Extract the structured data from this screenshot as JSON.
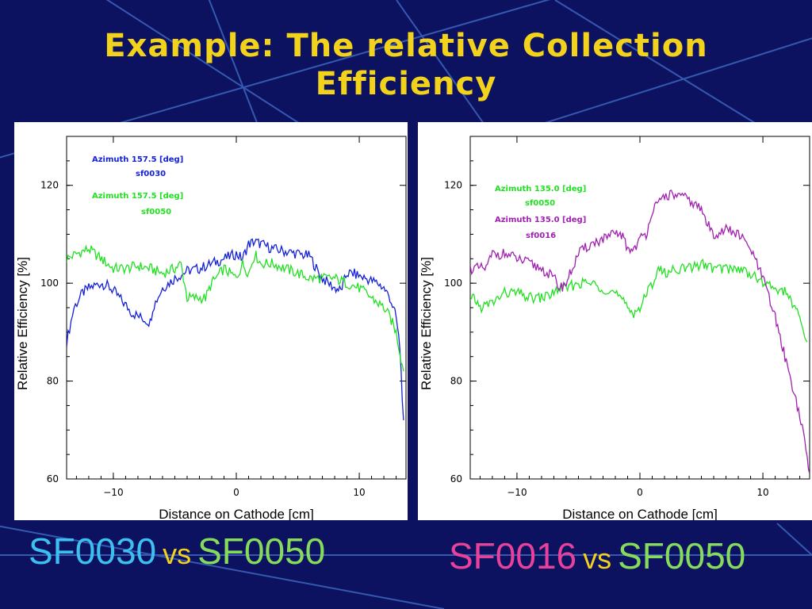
{
  "title": {
    "line1": "Example: The relative Collection",
    "line2": "Efficiency"
  },
  "colors": {
    "background": "#0c1260",
    "title": "#f2d21a",
    "deco": "#3f6bc4",
    "sf0030": "#3cc0f0",
    "sf0050": "#86dc5a",
    "sf0016": "#e8419a",
    "vs": "#f2d21a"
  },
  "captions": {
    "left": {
      "a": "SF0030",
      "vs": "vs",
      "b": "SF0050"
    },
    "right": {
      "a": "SF0016",
      "vs": "vs",
      "b": "SF0050"
    }
  },
  "chart_data": [
    {
      "type": "line",
      "xlabel": "Distance on Cathode [cm]",
      "ylabel": "Relative Efficiency [%]",
      "xlim": [
        -13.8,
        13.8
      ],
      "ylim": [
        60,
        130
      ],
      "xticks": [
        -10,
        0,
        10
      ],
      "xtick_labels": [
        "−10",
        "0",
        "10"
      ],
      "yticks": [
        60,
        80,
        100,
        120
      ],
      "grid": false,
      "legend": [
        {
          "text": "Azimuth 157.5 [deg]",
          "sub": "sf0030",
          "color": "#1420d8"
        },
        {
          "text": "Azimuth 157.5 [deg]",
          "sub": "sf0050",
          "color": "#22e022"
        }
      ],
      "series": [
        {
          "name": "sf0030",
          "color": "#1420d8",
          "x": [
            -13.8,
            -13.2,
            -12.5,
            -12.0,
            -11.0,
            -10.5,
            -10.0,
            -9.5,
            -8.5,
            -7.8,
            -7.0,
            -6.8,
            -6.0,
            -5.0,
            -4.0,
            -3.0,
            -2.0,
            -1.0,
            0.0,
            0.5,
            1.0,
            1.5,
            2.0,
            3.0,
            4.0,
            5.0,
            6.0,
            6.5,
            7.0,
            8.0,
            8.5,
            9.0,
            9.5,
            10.5,
            11.5,
            12.0,
            12.5,
            13.0,
            13.3,
            13.6
          ],
          "y": [
            88,
            95,
            98,
            99,
            100,
            99.5,
            98.5,
            97,
            94,
            93,
            92,
            95,
            99,
            101,
            102.5,
            103,
            104,
            105,
            106,
            105,
            108,
            108.5,
            108,
            107,
            106.5,
            106,
            105.5,
            103,
            101,
            99,
            98.5,
            102,
            102,
            101,
            100,
            99,
            97,
            93,
            87,
            72
          ]
        },
        {
          "name": "sf0050",
          "color": "#22e022",
          "x": [
            -13.8,
            -13.0,
            -12.0,
            -11.5,
            -10.5,
            -10.0,
            -9.0,
            -8.0,
            -7.0,
            -6.0,
            -5.0,
            -4.5,
            -4.0,
            -3.5,
            -2.5,
            -2.0,
            -1.0,
            0.0,
            0.5,
            1.0,
            1.5,
            2.0,
            3.0,
            4.0,
            5.0,
            6.0,
            7.0,
            8.0,
            9.0,
            10.0,
            11.0,
            12.0,
            12.5,
            13.0,
            13.3,
            13.6
          ],
          "y": [
            105,
            106,
            107,
            106,
            104,
            103,
            103,
            103.5,
            103,
            102,
            103,
            104,
            97,
            97,
            97,
            100,
            103,
            101,
            104,
            102,
            106,
            104,
            104,
            103,
            102,
            101,
            101,
            101,
            100,
            99,
            97,
            95,
            93,
            90,
            86,
            82
          ]
        }
      ]
    },
    {
      "type": "line",
      "xlabel": "Distance on Cathode [cm]",
      "ylabel": "Relative Efficiency [%]",
      "xlim": [
        -13.8,
        13.8
      ],
      "ylim": [
        60,
        130
      ],
      "xticks": [
        -10,
        0,
        10
      ],
      "xtick_labels": [
        "−10",
        "0",
        "10"
      ],
      "yticks": [
        60,
        80,
        100,
        120
      ],
      "grid": false,
      "legend": [
        {
          "text": "Azimuth 135.0 [deg]",
          "sub": "sf0050",
          "color": "#22e022"
        },
        {
          "text": "Azimuth 135.0 [deg]",
          "sub": "sf0016",
          "color": "#a020b0"
        }
      ],
      "series": [
        {
          "name": "sf0050",
          "color": "#22e022",
          "x": [
            -13.8,
            -13.5,
            -13.0,
            -12.0,
            -11.0,
            -10.0,
            -9.0,
            -8.0,
            -7.0,
            -6.5,
            -6.0,
            -5.0,
            -4.0,
            -3.0,
            -2.0,
            -1.0,
            -0.5,
            0.0,
            1.0,
            1.5,
            2.0,
            3.0,
            4.0,
            5.0,
            6.0,
            7.0,
            8.0,
            9.0,
            10.0,
            11.0,
            12.0,
            12.5,
            13.0,
            13.3,
            13.6
          ],
          "y": [
            96,
            97,
            95,
            96,
            98,
            98,
            97,
            97,
            98,
            99,
            99,
            100,
            100,
            99,
            98,
            95,
            94,
            95,
            100,
            103,
            102,
            103,
            103,
            104,
            103,
            103,
            103,
            102,
            100,
            99,
            98,
            95,
            93,
            90,
            88
          ]
        },
        {
          "name": "sf0016",
          "color": "#a020b0",
          "x": [
            -13.8,
            -13.0,
            -12.5,
            -12.0,
            -11.0,
            -10.0,
            -9.0,
            -8.0,
            -7.0,
            -6.5,
            -6.0,
            -5.5,
            -5.0,
            -4.0,
            -3.0,
            -2.0,
            -1.5,
            -1.0,
            -0.5,
            0.0,
            0.5,
            1.0,
            1.5,
            2.0,
            3.0,
            4.0,
            5.0,
            5.5,
            6.0,
            7.0,
            8.0,
            9.0,
            9.5,
            10.0,
            10.5,
            11.0,
            11.5,
            12.0,
            12.5,
            13.0,
            13.5,
            13.8
          ],
          "y": [
            103,
            103,
            103,
            106,
            106,
            105,
            104,
            103,
            101,
            99,
            100,
            103,
            106,
            108,
            109,
            110,
            110,
            107,
            107,
            109,
            110,
            115,
            116,
            118,
            118,
            117,
            115,
            112,
            110,
            111,
            110,
            107,
            104,
            101,
            97,
            93,
            88,
            83,
            78,
            73,
            66,
            61
          ]
        }
      ]
    }
  ]
}
